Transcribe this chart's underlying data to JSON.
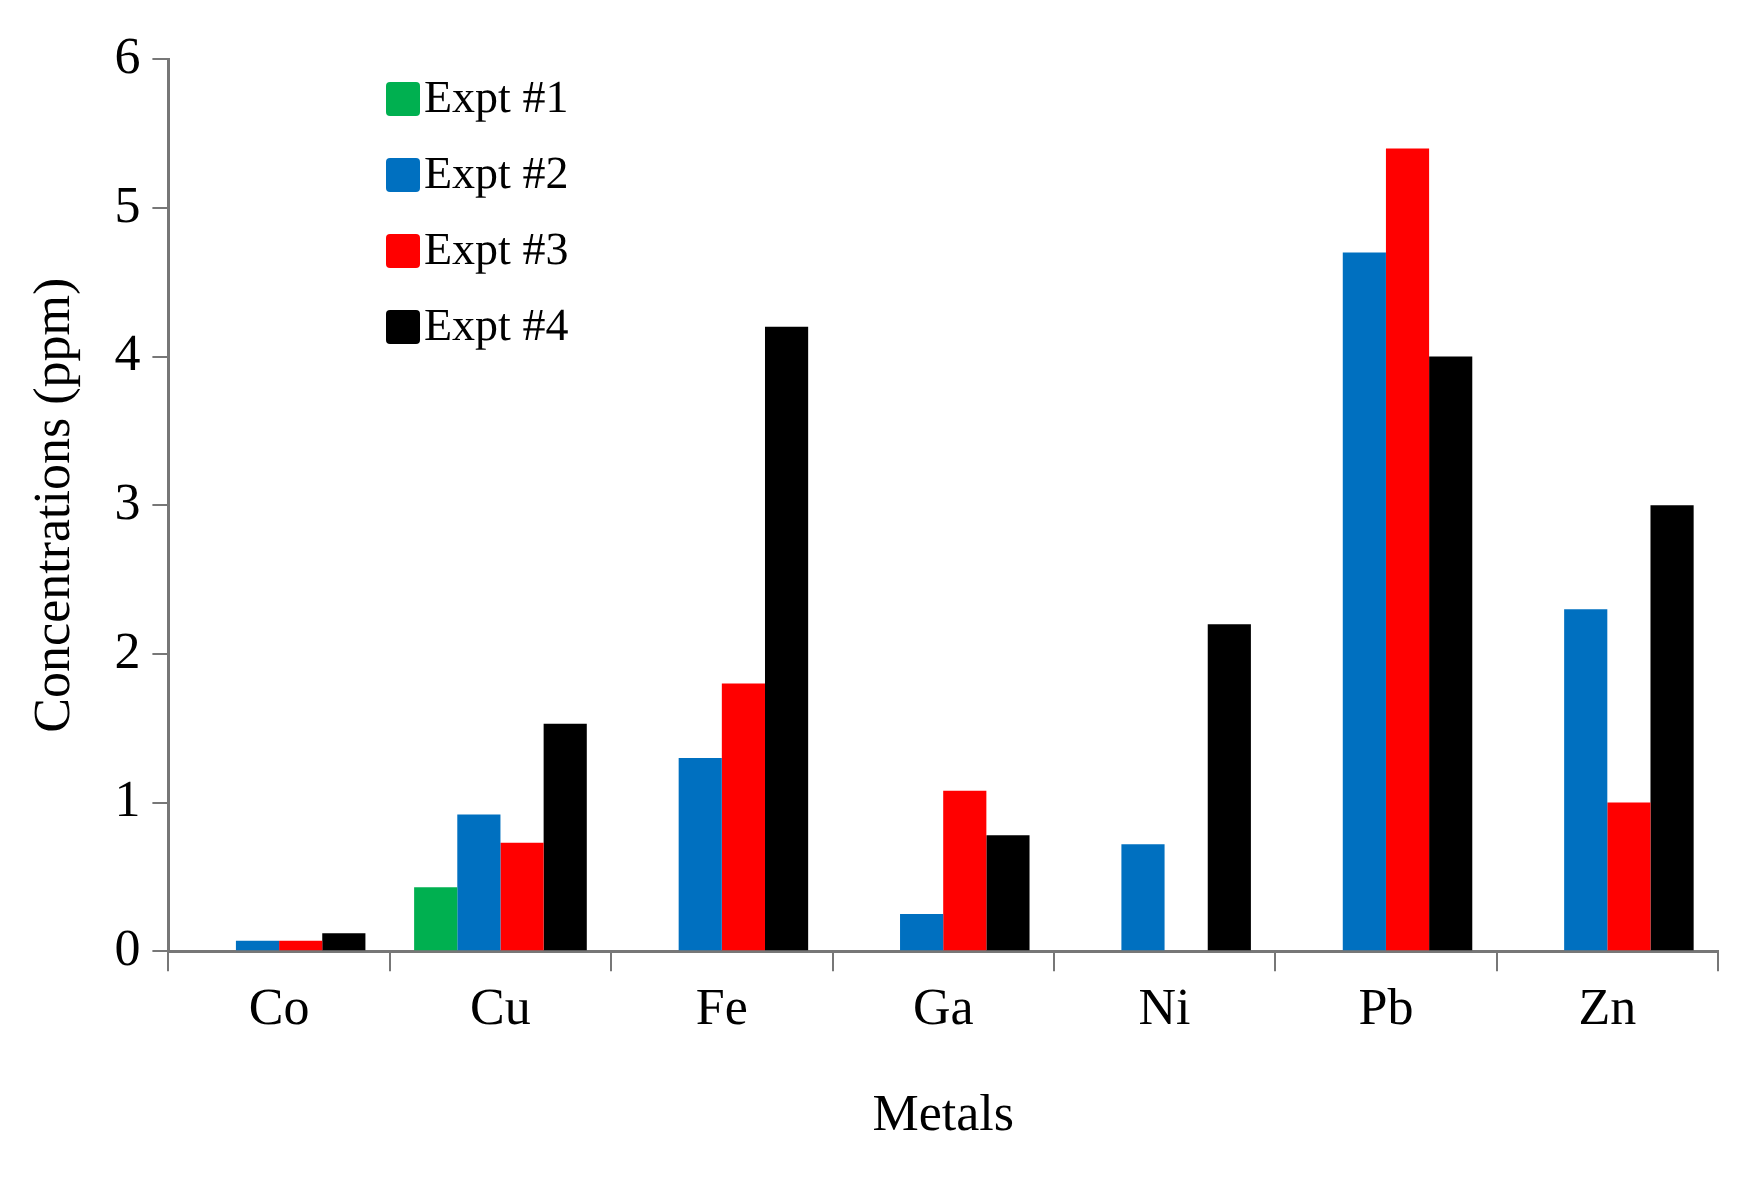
{
  "chart_data": {
    "type": "bar",
    "xlabel": "Metals",
    "ylabel": "Concentrations (ppm)",
    "categories": [
      "Co",
      "Cu",
      "Fe",
      "Ga",
      "Ni",
      "Pb",
      "Zn"
    ],
    "series": [
      {
        "name": "Expt #1",
        "color": "#00b050",
        "values": [
          0,
          0.43,
          0,
          0,
          0,
          0,
          0
        ]
      },
      {
        "name": "Expt #2",
        "color": "#0070c0",
        "values": [
          0.07,
          0.92,
          1.3,
          0.25,
          0.72,
          4.7,
          2.3
        ]
      },
      {
        "name": "Expt #3",
        "color": "#ff0000",
        "values": [
          0.07,
          0.73,
          1.8,
          1.08,
          0,
          5.4,
          1.0
        ]
      },
      {
        "name": "Expt #4",
        "color": "#000000",
        "values": [
          0.12,
          1.53,
          4.2,
          0.78,
          2.2,
          4.0,
          3.0
        ]
      }
    ],
    "ylim": [
      0,
      6
    ],
    "yticks": [
      0,
      1,
      2,
      3,
      4,
      5,
      6
    ],
    "grid": false,
    "legend": "top left"
  }
}
